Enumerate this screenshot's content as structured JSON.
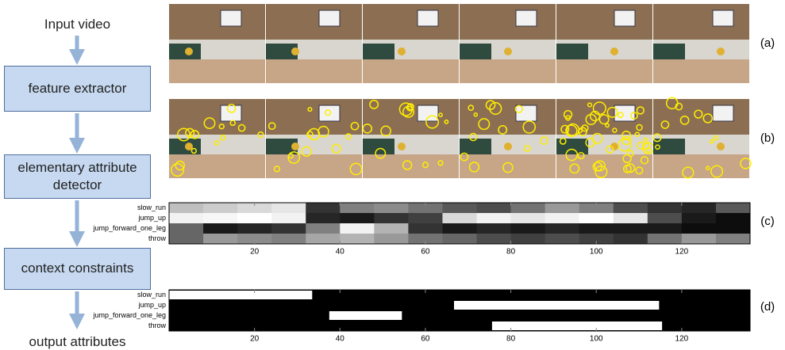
{
  "flow": {
    "input": "Input video",
    "steps": [
      "feature extractor",
      "elementary attribute detector",
      "context constraints"
    ],
    "output": "output attributes"
  },
  "panels": {
    "labels": [
      "(a)",
      "(b)",
      "(c)",
      "(d)"
    ]
  },
  "detector_scores": {
    "rows": [
      "slow_run",
      "jump_up",
      "jump_forward_one_leg",
      "throw"
    ],
    "xlim": [
      0,
      136
    ],
    "xticks": [
      20,
      40,
      60,
      80,
      100,
      120
    ],
    "values": [
      [
        0.75,
        0.8,
        0.85,
        0.9,
        0.2,
        0.5,
        0.55,
        0.45,
        0.35,
        0.3,
        0.45,
        0.6,
        0.5,
        0.3,
        0.2,
        0.15,
        0.35
      ],
      [
        0.95,
        0.97,
        1,
        0.95,
        0.15,
        0.1,
        0.2,
        0.25,
        0.85,
        0.95,
        0.9,
        0.95,
        1,
        0.9,
        0.3,
        0.1,
        0.05
      ],
      [
        0.4,
        0.1,
        0.15,
        0.2,
        0.5,
        0.95,
        0.7,
        0.2,
        0.1,
        0.15,
        0.1,
        0.15,
        0.1,
        0.1,
        0.1,
        0.05,
        0.05
      ],
      [
        0.4,
        0.6,
        0.55,
        0.5,
        0.65,
        0.7,
        0.6,
        0.45,
        0.4,
        0.3,
        0.25,
        0.3,
        0.25,
        0.2,
        0.45,
        0.6,
        0.5
      ]
    ]
  },
  "context_output": {
    "rows": [
      "slow_run",
      "jump_up",
      "jump_forward_one_leg",
      "throw"
    ],
    "xlim": [
      0,
      136
    ],
    "xticks": [
      20,
      40,
      60,
      80,
      100,
      120
    ],
    "segments": [
      [
        [
          0,
          33.5
        ]
      ],
      [
        [
          66.7,
          114.7
        ]
      ],
      [
        [
          37.5,
          54.5
        ]
      ],
      [
        [
          75.6,
          115.4
        ]
      ]
    ]
  }
}
